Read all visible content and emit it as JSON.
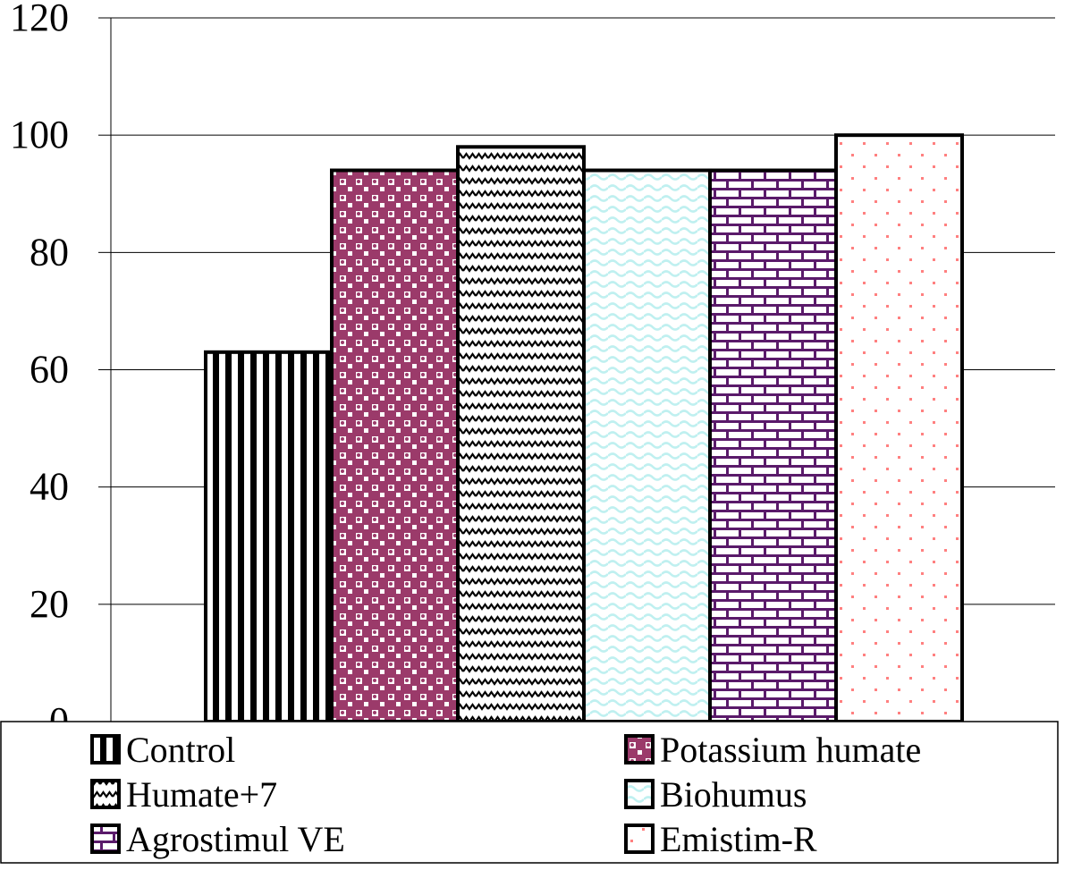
{
  "chart_data": {
    "type": "bar",
    "title": "",
    "xlabel": "",
    "ylabel": "",
    "ylim": [
      0,
      120
    ],
    "yticks": [
      0,
      20,
      40,
      60,
      80,
      100,
      120
    ],
    "grid": true,
    "legend_position": "bottom",
    "series": [
      {
        "name": "Control",
        "value": 63,
        "pattern": "vertical-stripes",
        "color": "#000000"
      },
      {
        "name": "Potassium humate",
        "value": 94,
        "pattern": "dotted-grid",
        "color": "#9b3a6a"
      },
      {
        "name": "Humate+7",
        "value": 98,
        "pattern": "zigzag",
        "color": "#000000"
      },
      {
        "name": "Biohumus",
        "value": 94,
        "pattern": "wave",
        "color": "#bff0f0"
      },
      {
        "name": "Agrostimul VE",
        "value": 94,
        "pattern": "brick",
        "color": "#5a1a6a"
      },
      {
        "name": "Emistim-R",
        "value": 100,
        "pattern": "sparse-dots",
        "color": "#ff8080"
      }
    ]
  }
}
